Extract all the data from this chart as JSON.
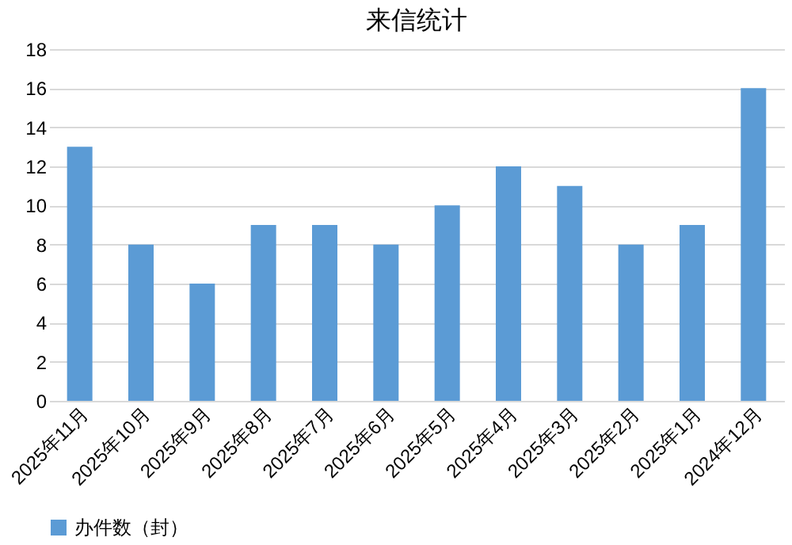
{
  "chart_data": {
    "type": "bar",
    "title": "来信统计",
    "categories": [
      "2025年11月",
      "2025年10月",
      "2025年9月",
      "2025年8月",
      "2025年7月",
      "2025年6月",
      "2025年5月",
      "2025年4月",
      "2025年3月",
      "2025年2月",
      "2025年1月",
      "2024年12月"
    ],
    "series": [
      {
        "name": "办件数（封）",
        "color": "#5b9bd5",
        "values": [
          13,
          8,
          6,
          9,
          9,
          8,
          10,
          12,
          11,
          8,
          9,
          16
        ]
      }
    ],
    "ylim": [
      0,
      18
    ],
    "yticks": [
      0,
      2,
      4,
      6,
      8,
      10,
      12,
      14,
      16,
      18
    ],
    "grid": "y",
    "legend": "bottom"
  }
}
